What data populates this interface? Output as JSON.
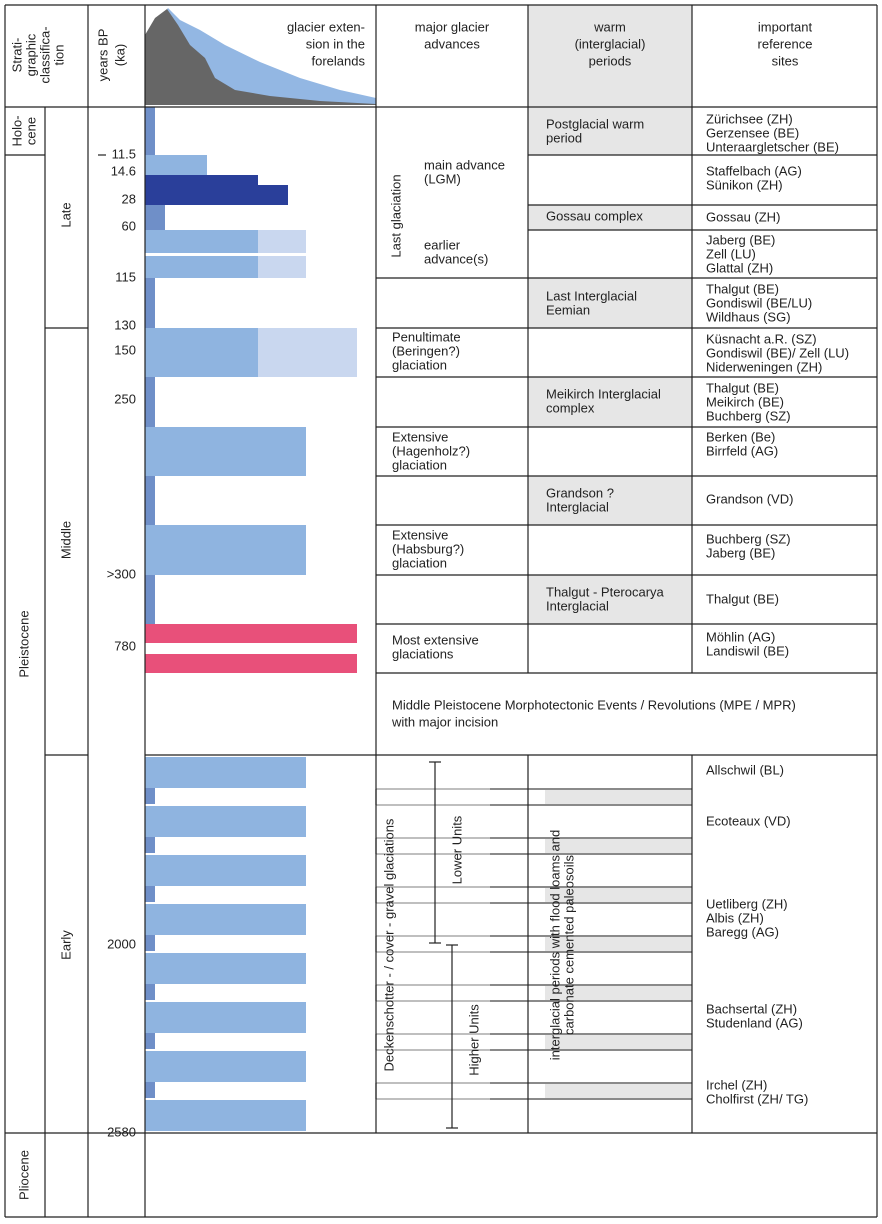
{
  "header": {
    "stratigraphic": [
      "Strati-",
      "graphic",
      "classifica-",
      "tion"
    ],
    "years": [
      "years BP",
      "(ka)"
    ],
    "glacier": [
      "glacier exten-",
      "sion in the",
      "forelands"
    ],
    "advances": [
      "major glacier",
      "advances"
    ],
    "warm": [
      "warm",
      "(interglacial)",
      "periods"
    ],
    "sites": [
      "important",
      "reference",
      "sites"
    ]
  },
  "holocene": [
    "Holo-",
    "cene"
  ],
  "pleistocene": "Pleistocene",
  "pliocene": "Pliocene",
  "subdivisions": [
    "Late",
    "Middle",
    "Early"
  ],
  "ages": [
    "11.5",
    "14.6",
    "28",
    "60",
    "115",
    "130",
    "150",
    "250",
    ">300",
    "780",
    "2000",
    "2580"
  ],
  "last_glaciation": "Last glaciation",
  "advances": [
    [
      "main advance",
      "(LGM)"
    ],
    [
      "earlier",
      "advance(s)"
    ],
    [
      "Penultimate",
      "(Beringen?)",
      "glaciation"
    ],
    [
      "Extensive",
      "(Hagenholz?)",
      "glaciation"
    ],
    [
      "Extensive",
      "(Habsburg?)",
      "glaciation"
    ],
    [
      "Most extensive",
      "glaciations"
    ]
  ],
  "warm_periods": [
    [
      "Postglacial warm",
      "period"
    ],
    [
      "Gossau complex"
    ],
    [
      "Last Interglacial",
      "Eemian"
    ],
    [
      "Meikirch Interglacial",
      "complex"
    ],
    [
      "Grandson ?",
      "Interglacial"
    ],
    [
      "Thalgut - Pterocarya",
      "Interglacial"
    ]
  ],
  "sites": [
    [
      "Zürichsee (ZH)",
      "Gerzensee (BE)",
      "Unteraargletscher (BE)"
    ],
    [
      "Staffelbach (AG)",
      "Sünikon (ZH)"
    ],
    [
      "Gossau (ZH)"
    ],
    [
      "Jaberg (BE)",
      "Zell (LU)",
      "Glattal (ZH)"
    ],
    [
      "Thalgut (BE)",
      "Gondiswil (BE/LU)",
      "Wildhaus (SG)"
    ],
    [
      "Küsnacht a.R. (SZ)",
      "Gondiswil (BE)/ Zell (LU)",
      "Niderweningen (ZH)"
    ],
    [
      "Thalgut (BE)",
      "Meikirch (BE)",
      "Buchberg (SZ)"
    ],
    [
      "Berken (Be)",
      "Birrfeld (AG)"
    ],
    [
      "Grandson (VD)"
    ],
    [
      "Buchberg (SZ)",
      "Jaberg (BE)"
    ],
    [
      "Thalgut (BE)"
    ],
    [
      "Möhlin (AG)",
      "Landiswil (BE)"
    ],
    [
      "Allschwil (BL)"
    ],
    [
      "Ecoteaux (VD)"
    ],
    [
      "Uetliberg (ZH)",
      "Albis (ZH)",
      "Baregg (AG)"
    ],
    [
      "Bachsertal (ZH)",
      "Studenland  (AG)"
    ],
    [
      "Irchel (ZH)",
      "Cholfirst (ZH/ TG)"
    ]
  ],
  "mpe": [
    "Middle Pleistocene Morphotectonic Events / Revolutions (MPE / MPR)",
    "with major incision"
  ],
  "early": {
    "deckenschotter": "Deckenschotter - / cover - gravel glaciations",
    "lower": "Lower Units",
    "higher": "Higher Units",
    "interglacial": [
      "interglacial periods with flood loams and",
      "carbonate cemented paleosoils"
    ]
  }
}
